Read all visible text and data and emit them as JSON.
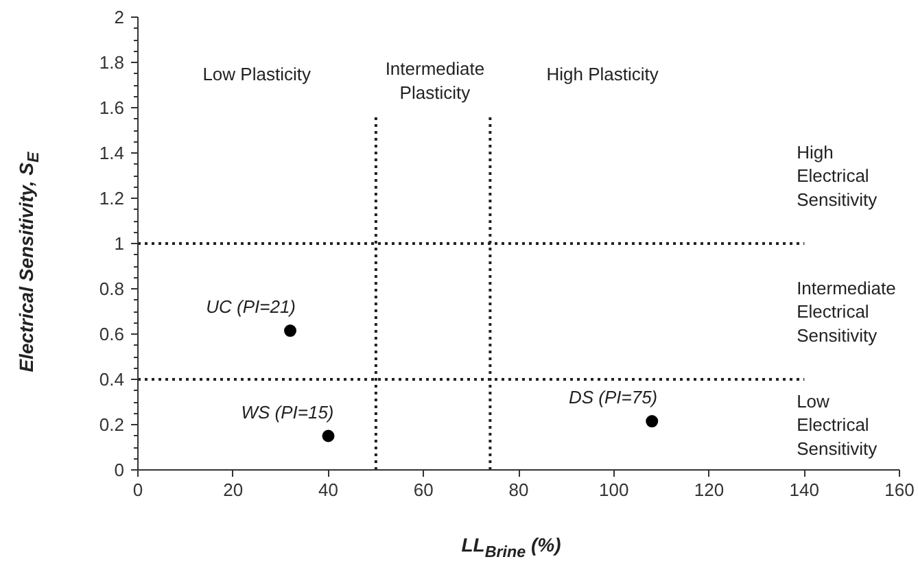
{
  "chart_data": {
    "type": "scatter",
    "xlabel": "LL$_{Brine}$ (%)",
    "ylabel": "Electrical Sensitivity, S$_{E}$",
    "x": [
      32,
      40,
      108
    ],
    "series": [
      {
        "color": "#000000",
        "values": [
          0.615,
          0.15,
          0.215
        ]
      }
    ],
    "marker": "circle",
    "grid": false,
    "xlim": [
      0,
      160
    ],
    "xticks": [
      0,
      20,
      40,
      60,
      80,
      100,
      120,
      140,
      160
    ],
    "ylim": [
      0,
      2
    ],
    "yticks": [
      0,
      0.2,
      0.4,
      0.6,
      0.8,
      1,
      1.2,
      1.4,
      1.6,
      1.8,
      2
    ],
    "ref_lines": [
      {
        "axis": "y",
        "value": 1,
        "line_style": "dotted"
      },
      {
        "axis": "y",
        "value": 0.4,
        "line_style": "dotted"
      },
      {
        "axis": "x",
        "value": 50,
        "line_style": "dotted"
      },
      {
        "axis": "x",
        "value": 74,
        "line_style": "dotted"
      }
    ],
    "annotations": [
      {
        "text": "UC (PI=21)",
        "x": 32,
        "y": 0.615
      },
      {
        "text": "WS (PI=15)",
        "x": 40,
        "y": 0.15
      },
      {
        "text": "DS (PI=75)",
        "x": 108,
        "y": 0.215
      },
      "Low Plasticity",
      "Intermediate\nPlasticity",
      "High Plasticity",
      "High\nElectrical\nSensitivity",
      "Intermediate\nElectrical\nSensitivity",
      "Low\nElectrical\nSensitivity"
    ]
  }
}
